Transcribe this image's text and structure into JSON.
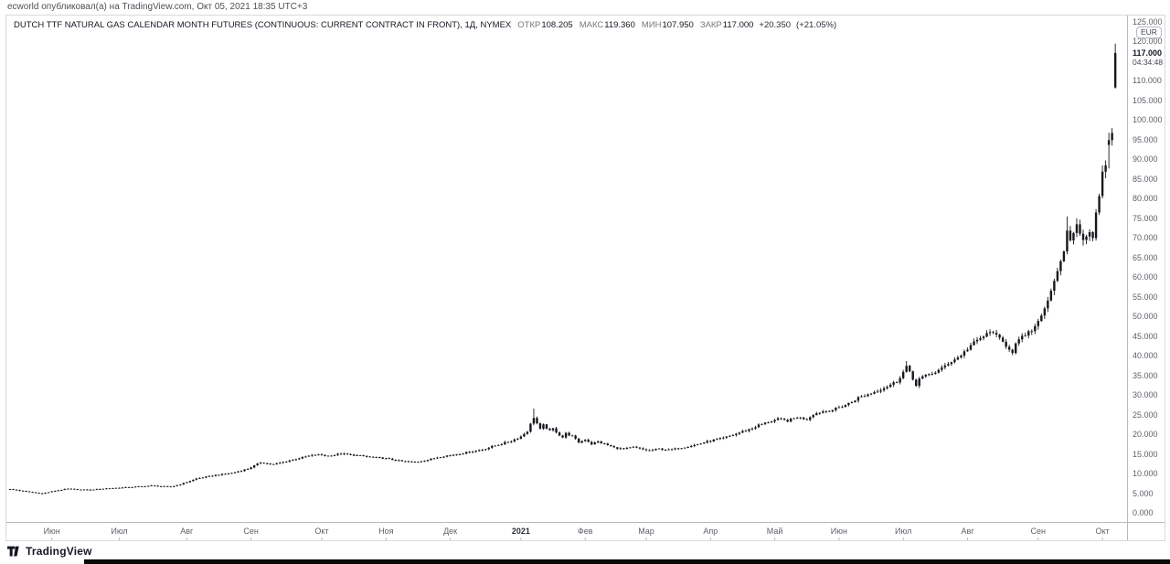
{
  "published_bar": {
    "text": "ecworld опубликовал(а) на TradingView.com, Окт 05, 2021 18:35 UTC+3"
  },
  "header": {
    "title": "DUTCH TTF NATURAL GAS CALENDAR MONTH FUTURES (CONTINUOUS: CURRENT CONTRACT IN FRONT), 1Д, NYMEX",
    "ohlc": {
      "open_label": "ОТКР",
      "open_value": "108.205",
      "high_label": "МАКС",
      "high_value": "119.360",
      "low_label": "МИН",
      "low_value": "107.950",
      "close_label": "ЗАКР",
      "close_value": "117.000",
      "change": "+20.350",
      "change_pct": "(+21.05%)"
    }
  },
  "price_axis": {
    "currency_badge": "EUR",
    "last_price": "117.000",
    "countdown": "04:34:48",
    "tick_min": 0,
    "tick_max": 125,
    "tick_step": 5
  },
  "time_axis": {
    "labels": [
      {
        "t": "Июн",
        "d": 13
      },
      {
        "t": "Июл",
        "d": 34
      },
      {
        "t": "Авг",
        "d": 55
      },
      {
        "t": "Сен",
        "d": 75
      },
      {
        "t": "Окт",
        "d": 97
      },
      {
        "t": "Ноя",
        "d": 117
      },
      {
        "t": "Дек",
        "d": 137
      },
      {
        "t": "2021",
        "d": 159,
        "bold": true
      },
      {
        "t": "Фев",
        "d": 179
      },
      {
        "t": "Мар",
        "d": 198
      },
      {
        "t": "Апр",
        "d": 218
      },
      {
        "t": "Май",
        "d": 238
      },
      {
        "t": "Июн",
        "d": 258
      },
      {
        "t": "Июл",
        "d": 278
      },
      {
        "t": "Авг",
        "d": 298
      },
      {
        "t": "Сен",
        "d": 320
      },
      {
        "t": "Окт",
        "d": 340
      }
    ]
  },
  "footer": {
    "logo_text": "TradingView"
  },
  "colors": {
    "candle": "#16181d",
    "axis_line": "#b6bac1",
    "frame_border": "#d6d9de",
    "axis_text": "#5d6167",
    "label_text": "#76797e",
    "value_text": "#131722"
  },
  "chart_data": {
    "type": "candlestick",
    "title": "DUTCH TTF NATURAL GAS CALENDAR MONTH FUTURES (CONTINUOUS: CURRENT CONTRACT IN FRONT)",
    "interval": "1Д",
    "exchange": "NYMEX",
    "currency": "EUR",
    "xlabel": "",
    "ylabel": "EUR",
    "ylim": [
      0,
      125
    ],
    "x_range": {
      "start": "Июн 2020",
      "end": "Окт 05 2021"
    },
    "grid": false,
    "legend_position": "none",
    "last_candle": {
      "open": 108.205,
      "high": 119.36,
      "low": 107.95,
      "close": 117.0,
      "change": 20.35,
      "change_pct": 21.05
    },
    "days_total": 345,
    "close_anchors": [
      [
        0,
        6.0
      ],
      [
        6,
        5.3
      ],
      [
        10,
        4.9
      ],
      [
        14,
        5.6
      ],
      [
        18,
        6.1
      ],
      [
        24,
        5.8
      ],
      [
        30,
        6.2
      ],
      [
        37,
        6.5
      ],
      [
        44,
        6.9
      ],
      [
        50,
        6.6
      ],
      [
        54,
        7.5
      ],
      [
        58,
        8.7
      ],
      [
        64,
        9.6
      ],
      [
        69,
        10.1
      ],
      [
        74,
        11.2
      ],
      [
        78,
        12.8
      ],
      [
        82,
        12.3
      ],
      [
        86,
        13.1
      ],
      [
        91,
        14.1
      ],
      [
        95,
        14.8
      ],
      [
        99,
        14.5
      ],
      [
        103,
        15.0
      ],
      [
        108,
        14.6
      ],
      [
        112,
        14.2
      ],
      [
        117,
        13.8
      ],
      [
        122,
        13.1
      ],
      [
        126,
        12.9
      ],
      [
        130,
        13.5
      ],
      [
        134,
        14.3
      ],
      [
        139,
        14.9
      ],
      [
        143,
        15.5
      ],
      [
        147,
        16.1
      ],
      [
        151,
        17.1
      ],
      [
        156,
        18.3
      ],
      [
        159,
        19.4
      ],
      [
        161,
        20.8
      ],
      [
        163,
        24.3
      ],
      [
        165,
        21.2
      ],
      [
        166,
        22.3
      ],
      [
        168,
        20.8
      ],
      [
        169,
        21.4
      ],
      [
        171,
        19.8
      ],
      [
        172,
        19.2
      ],
      [
        173,
        20.2
      ],
      [
        175,
        19.5
      ],
      [
        177,
        17.9
      ],
      [
        179,
        18.7
      ],
      [
        181,
        17.5
      ],
      [
        183,
        18.1
      ],
      [
        186,
        17.2
      ],
      [
        188,
        16.6
      ],
      [
        191,
        16.2
      ],
      [
        194,
        16.7
      ],
      [
        197,
        16.1
      ],
      [
        199,
        15.8
      ],
      [
        202,
        16.3
      ],
      [
        205,
        16.0
      ],
      [
        208,
        16.4
      ],
      [
        211,
        16.9
      ],
      [
        214,
        17.4
      ],
      [
        216,
        17.9
      ],
      [
        219,
        18.5
      ],
      [
        222,
        19.0
      ],
      [
        225,
        19.8
      ],
      [
        228,
        20.7
      ],
      [
        231,
        21.5
      ],
      [
        233,
        22.3
      ],
      [
        236,
        23.1
      ],
      [
        239,
        23.8
      ],
      [
        242,
        23.4
      ],
      [
        245,
        24.3
      ],
      [
        248,
        23.8
      ],
      [
        250,
        25.1
      ],
      [
        253,
        25.8
      ],
      [
        256,
        26.2
      ],
      [
        259,
        27.1
      ],
      [
        262,
        28.2
      ],
      [
        264,
        29.3
      ],
      [
        267,
        30.1
      ],
      [
        270,
        31.1
      ],
      [
        273,
        32.2
      ],
      [
        276,
        33.4
      ],
      [
        278,
        35.8
      ],
      [
        279,
        37.3
      ],
      [
        281,
        33.9
      ],
      [
        282,
        32.6
      ],
      [
        283,
        34.1
      ],
      [
        286,
        35.2
      ],
      [
        288,
        35.8
      ],
      [
        290,
        36.7
      ],
      [
        292,
        38.1
      ],
      [
        295,
        39.5
      ],
      [
        297,
        40.9
      ],
      [
        299,
        42.6
      ],
      [
        302,
        44.4
      ],
      [
        304,
        45.4
      ],
      [
        306,
        46.2
      ],
      [
        307,
        44.9
      ],
      [
        309,
        43.4
      ],
      [
        311,
        41.8
      ],
      [
        312,
        41.0
      ],
      [
        313,
        42.9
      ],
      [
        315,
        44.6
      ],
      [
        317,
        45.9
      ],
      [
        318,
        46.2
      ],
      [
        319,
        47.5
      ],
      [
        320,
        48.8
      ],
      [
        321,
        50.2
      ],
      [
        322,
        52.0
      ],
      [
        323,
        54.0
      ],
      [
        324,
        56.5
      ],
      [
        325,
        59.0
      ],
      [
        326,
        61.5
      ],
      [
        327,
        64.0
      ],
      [
        328,
        66.5
      ],
      [
        329,
        71.8
      ],
      [
        330,
        69.3
      ],
      [
        331,
        71.2
      ],
      [
        332,
        73.4
      ],
      [
        333,
        71.0
      ],
      [
        334,
        69.4
      ],
      [
        335,
        70.3
      ],
      [
        336,
        71.4
      ],
      [
        337,
        69.9
      ],
      [
        338,
        76.4
      ],
      [
        339,
        80.6
      ],
      [
        340,
        86.8
      ],
      [
        341,
        88.4
      ],
      [
        342,
        94.8
      ],
      [
        343,
        96.65
      ],
      [
        344,
        117.0
      ]
    ],
    "special_candles": {
      "163": {
        "high": 26.5
      },
      "279": {
        "high": 38.6
      },
      "329": {
        "high": 75.4
      },
      "342": {
        "open": 93.6
      },
      "344": {
        "open": 108.205,
        "high": 119.36,
        "low": 107.95,
        "close": 117.0
      }
    }
  }
}
